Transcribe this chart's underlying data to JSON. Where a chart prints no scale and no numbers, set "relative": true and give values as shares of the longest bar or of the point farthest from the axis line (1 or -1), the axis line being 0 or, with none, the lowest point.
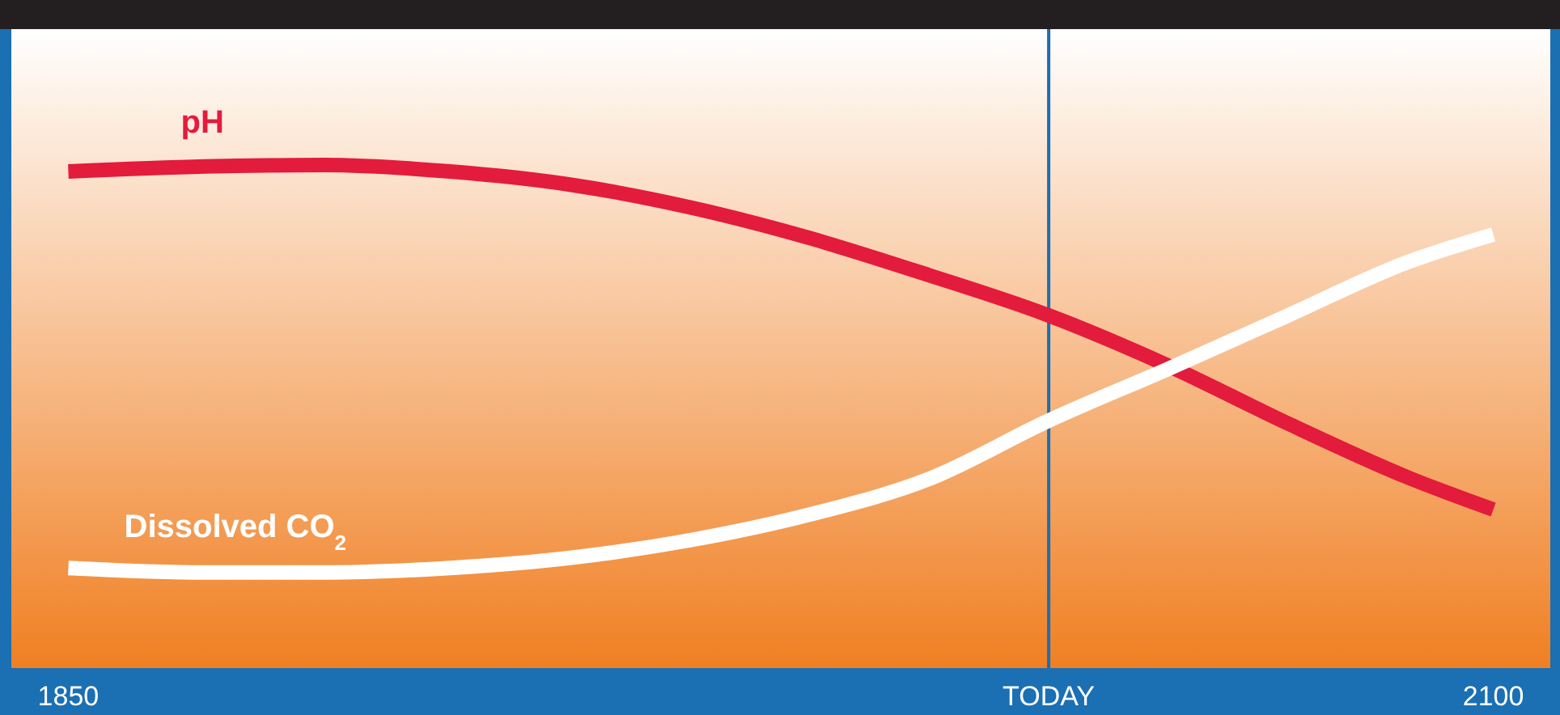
{
  "chart_data": {
    "type": "line",
    "relative": true,
    "x": [
      1850,
      1874,
      1895,
      1917,
      1938,
      1959,
      1980,
      2001,
      2022,
      2043,
      2064,
      2085,
      2100
    ],
    "series": [
      {
        "name": "pH",
        "color": "#e31b3c",
        "values": [
          0.987,
          0.997,
          1.0,
          0.987,
          0.961,
          0.916,
          0.855,
          0.781,
          0.701,
          0.601,
          0.486,
          0.379,
          0.315
        ]
      },
      {
        "name": "Dissolved CO$_{2}$",
        "color": "#ffffff",
        "values": [
          0.199,
          0.19,
          0.19,
          0.199,
          0.219,
          0.254,
          0.305,
          0.376,
          0.492,
          0.595,
          0.701,
          0.807,
          0.862
        ]
      }
    ],
    "xlim": [
      1840,
      2110
    ],
    "xticks": [
      1850,
      {
        "value": 2022,
        "label": "TODAY"
      },
      2100
    ],
    "ref_lines": [
      {
        "axis": "x",
        "value": 2022,
        "color": "#1b6fb3"
      }
    ],
    "grid": false
  }
}
